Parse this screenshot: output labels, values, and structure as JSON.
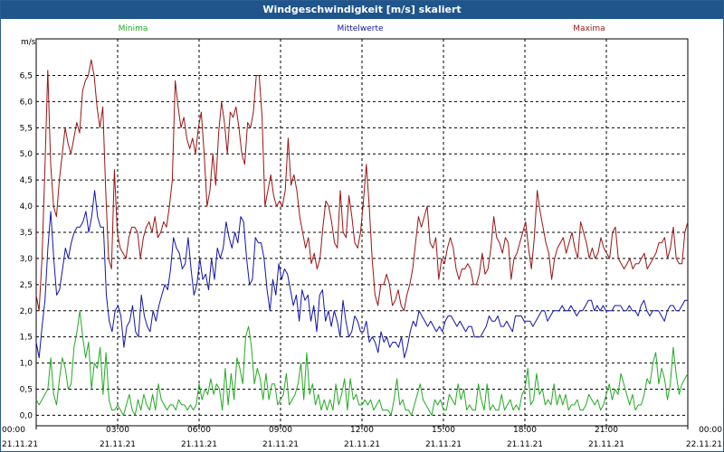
{
  "window": {
    "title": "Windgeschwindigkeit [m/s] skaliert"
  },
  "chart_data": {
    "type": "line",
    "title": "Windgeschwindigkeit [m/s] skaliert",
    "ylabel": "m/s",
    "xlabel": "",
    "ylim": [
      -0.2,
      7.2
    ],
    "yticks": [
      0.0,
      0.5,
      1.0,
      1.5,
      2.0,
      2.5,
      3.0,
      3.5,
      4.0,
      4.5,
      5.0,
      5.5,
      6.0,
      6.5
    ],
    "ytick_labels": [
      "0,0",
      "0,5",
      "1,0",
      "1,5",
      "2,0",
      "2,5",
      "3,0",
      "3,5",
      "4,0",
      "4,5",
      "5,0",
      "5,5",
      "6,0",
      "6,5"
    ],
    "xlim": [
      0,
      24
    ],
    "xticks": [
      0,
      3,
      6,
      9,
      12,
      15,
      18,
      21,
      24
    ],
    "xtick_time_labels": [
      "00:00",
      "03:00",
      "06:00",
      "09:00",
      "12:00",
      "15:00",
      "18:00",
      "21:00",
      "00:00"
    ],
    "xtick_date_labels": [
      "21.11.21",
      "21.11.21",
      "21.11.21",
      "21.11.21",
      "21.11.21",
      "21.11.21",
      "21.11.21",
      "21.11.21",
      "22.11.21"
    ],
    "grid": true,
    "legend_position": "top",
    "series": [
      {
        "name": "Minima",
        "color": "#22aa22",
        "values": [
          0.3,
          0.2,
          0.3,
          0.4,
          0.5,
          1.1,
          0.4,
          0.2,
          0.7,
          1.1,
          0.9,
          0.5,
          0.6,
          1.3,
          1.6,
          2.0,
          1.5,
          1.1,
          1.4,
          0.5,
          1.0,
          0.9,
          1.3,
          0.4,
          1.2,
          0.3,
          0.1,
          0.1,
          0.2,
          0.1,
          0.0,
          0.2,
          0.4,
          0.1,
          0.0,
          0.3,
          0.1,
          0.4,
          0.2,
          0.1,
          0.4,
          0.1,
          0.6,
          0.3,
          0.2,
          0.1,
          0.2,
          0.2,
          0.1,
          0.3,
          0.2,
          0.2,
          0.1,
          0.2,
          0.1,
          0.2,
          0.6,
          0.3,
          0.5,
          0.4,
          0.7,
          0.4,
          0.6,
          0.5,
          0.1,
          0.9,
          0.2,
          0.8,
          0.3,
          1.1,
          0.9,
          0.6,
          1.5,
          1.7,
          1.3,
          0.6,
          0.9,
          0.7,
          0.3,
          0.8,
          0.3,
          0.6,
          0.6,
          0.2,
          0.3,
          0.4,
          0.8,
          0.2,
          0.3,
          0.4,
          0.6,
          1.0,
          0.3,
          1.2,
          0.4,
          0.6,
          0.2,
          0.4,
          0.1,
          0.3,
          0.1,
          0.3,
          0.1,
          0.6,
          0.2,
          0.4,
          0.7,
          0.1,
          0.7,
          0.3,
          0.4,
          0.2,
          0.2,
          0.3,
          0.2,
          0.3,
          0.1,
          0.2,
          0.3,
          0.1,
          0.1,
          0.1,
          0.0,
          0.3,
          0.7,
          0.2,
          0.3,
          0.1,
          0.1,
          0.0,
          0.2,
          0.4,
          0.6,
          0.3,
          0.2,
          0.1,
          0.0,
          0.3,
          0.2,
          0.3,
          0.1,
          0.1,
          0.4,
          0.3,
          0.2,
          0.6,
          0.3,
          0.5,
          0.1,
          0.2,
          0.1,
          0.1,
          0.6,
          0.3,
          0.1,
          0.6,
          0.1,
          0.2,
          0.1,
          0.1,
          0.4,
          0.1,
          0.2,
          0.3,
          0.1,
          0.2,
          0.1,
          0.4,
          0.5,
          0.9,
          0.2,
          0.3,
          0.8,
          0.4,
          0.5,
          0.2,
          0.3,
          0.2,
          0.6,
          0.2,
          0.4,
          0.2,
          0.4,
          0.1,
          0.2,
          0.2,
          0.3,
          0.1,
          0.1,
          0.2,
          0.4,
          0.3,
          0.2,
          0.3,
          0.1,
          0.2,
          0.4,
          0.6,
          0.3,
          0.5,
          0.4,
          0.8,
          0.6,
          0.4,
          0.2,
          0.4,
          0.1,
          0.2,
          0.2,
          0.4,
          0.7,
          0.6,
          1.0,
          1.2,
          0.6,
          0.9,
          0.7,
          0.3,
          0.6,
          1.3,
          0.8,
          0.4,
          0.6,
          0.7,
          0.8
        ]
      },
      {
        "name": "Mittelwerte",
        "color": "#1414aa",
        "values": [
          1.4,
          1.1,
          1.7,
          2.2,
          3.2,
          3.9,
          3.0,
          2.3,
          2.4,
          2.8,
          3.2,
          3.0,
          3.3,
          3.5,
          3.6,
          3.6,
          3.7,
          3.9,
          3.5,
          3.8,
          4.3,
          3.8,
          3.6,
          3.6,
          2.3,
          1.8,
          1.6,
          2.0,
          2.1,
          1.9,
          1.3,
          1.7,
          1.8,
          2.1,
          1.6,
          1.5,
          2.3,
          1.9,
          1.7,
          1.6,
          2.0,
          1.8,
          2.1,
          2.3,
          2.5,
          2.4,
          2.8,
          3.4,
          3.2,
          3.1,
          2.8,
          2.9,
          3.4,
          2.8,
          2.3,
          2.5,
          3.0,
          2.6,
          2.7,
          2.4,
          3.0,
          2.6,
          3.2,
          3.0,
          3.2,
          3.7,
          3.4,
          3.2,
          3.5,
          3.3,
          3.8,
          3.7,
          3.0,
          2.5,
          2.6,
          3.4,
          3.3,
          3.3,
          3.0,
          2.4,
          2.0,
          2.6,
          2.3,
          2.9,
          2.6,
          2.8,
          2.7,
          2.4,
          2.1,
          2.3,
          1.8,
          2.4,
          2.2,
          2.3,
          1.8,
          2.1,
          1.6,
          2.3,
          2.4,
          1.8,
          2.0,
          1.7,
          2.0,
          1.8,
          1.5,
          2.2,
          1.8,
          1.5,
          1.6,
          1.9,
          1.8,
          1.6,
          1.6,
          1.8,
          1.4,
          1.5,
          1.4,
          1.2,
          1.6,
          1.4,
          1.5,
          1.3,
          1.4,
          1.4,
          1.3,
          1.5,
          1.1,
          1.3,
          1.6,
          1.8,
          1.7,
          2.0,
          1.9,
          1.8,
          1.7,
          1.8,
          1.7,
          1.6,
          1.7,
          1.6,
          1.8,
          1.9,
          1.9,
          1.8,
          1.7,
          1.8,
          1.7,
          1.6,
          1.7,
          1.7,
          1.5,
          1.5,
          1.5,
          1.6,
          1.7,
          1.9,
          1.8,
          1.8,
          1.9,
          1.7,
          1.7,
          1.8,
          1.7,
          1.6,
          1.9,
          1.9,
          1.9,
          1.8,
          1.8,
          1.8,
          1.7,
          1.8,
          1.9,
          2.0,
          2.0,
          1.8,
          1.9,
          2.0,
          2.0,
          2.0,
          2.1,
          2.0,
          2.0,
          2.1,
          2.0,
          1.9,
          2.0,
          2.0,
          2.1,
          2.2,
          2.2,
          2.0,
          2.1,
          2.0,
          2.1,
          2.0,
          2.0,
          2.0,
          2.1,
          2.1,
          2.1,
          2.0,
          2.0,
          2.1,
          2.0,
          2.0,
          1.9,
          2.1,
          2.2,
          2.0,
          1.9,
          2.0,
          2.0,
          2.0,
          1.9,
          1.8,
          2.0,
          2.1,
          2.1,
          2.0,
          2.0,
          2.1,
          2.2,
          2.2
        ]
      },
      {
        "name": "Maxima",
        "color": "#9a1414",
        "values": [
          2.3,
          2.0,
          3.0,
          4.7,
          6.6,
          4.8,
          4.0,
          3.8,
          4.5,
          5.0,
          5.5,
          5.2,
          5.0,
          5.3,
          5.6,
          5.4,
          6.2,
          6.4,
          6.5,
          6.8,
          6.5,
          5.9,
          5.5,
          5.9,
          4.3,
          3.0,
          2.8,
          4.7,
          3.5,
          3.2,
          3.1,
          3.0,
          3.4,
          3.6,
          3.6,
          3.5,
          3.0,
          3.4,
          3.6,
          3.7,
          3.5,
          3.8,
          3.4,
          3.5,
          3.7,
          3.6,
          4.0,
          4.5,
          6.4,
          5.9,
          5.5,
          5.7,
          5.3,
          5.1,
          5.3,
          5.0,
          5.5,
          5.8,
          5.0,
          4.0,
          4.3,
          5.0,
          4.4,
          5.4,
          6.0,
          5.6,
          5.0,
          5.8,
          5.7,
          5.9,
          5.5,
          5.0,
          4.8,
          5.6,
          5.5,
          5.8,
          6.5,
          6.5,
          5.7,
          4.0,
          4.3,
          4.6,
          4.2,
          4.0,
          4.1,
          4.0,
          4.3,
          5.3,
          4.4,
          4.6,
          4.3,
          3.8,
          3.5,
          3.2,
          3.4,
          2.9,
          3.1,
          2.8,
          3.0,
          3.6,
          4.1,
          4.0,
          3.7,
          3.3,
          3.2,
          4.3,
          3.5,
          3.4,
          4.2,
          3.8,
          3.3,
          3.2,
          3.5,
          4.1,
          4.8,
          4.0,
          3.0,
          2.3,
          2.1,
          2.5,
          2.5,
          2.7,
          2.5,
          2.1,
          2.2,
          2.4,
          2.1,
          2.0,
          2.3,
          2.5,
          2.8,
          3.3,
          3.8,
          3.6,
          3.8,
          4.0,
          3.3,
          3.2,
          3.4,
          2.6,
          3.0,
          2.9,
          3.2,
          3.4,
          3.2,
          2.8,
          2.6,
          2.8,
          2.8,
          2.9,
          2.8,
          2.5,
          2.5,
          2.7,
          3.1,
          2.7,
          2.8,
          3.2,
          3.8,
          3.4,
          3.3,
          3.1,
          3.4,
          3.3,
          2.6,
          3.0,
          3.1,
          3.3,
          3.5,
          3.7,
          3.2,
          2.8,
          3.4,
          4.3,
          3.9,
          3.6,
          3.3,
          3.1,
          2.6,
          3.0,
          3.2,
          3.3,
          3.4,
          3.1,
          3.3,
          3.5,
          3.2,
          3.0,
          3.7,
          3.5,
          3.3,
          3.0,
          3.2,
          3.0,
          3.1,
          3.4,
          3.2,
          3.1,
          3.0,
          3.5,
          3.6,
          3.0,
          2.9,
          2.8,
          2.9,
          3.0,
          2.8,
          2.9,
          2.9,
          3.0,
          3.1,
          2.8,
          2.9,
          3.0,
          3.1,
          3.3,
          3.3,
          3.4,
          3.0,
          3.2,
          3.6,
          3.0,
          2.9,
          2.9,
          3.5,
          3.7
        ]
      }
    ]
  }
}
